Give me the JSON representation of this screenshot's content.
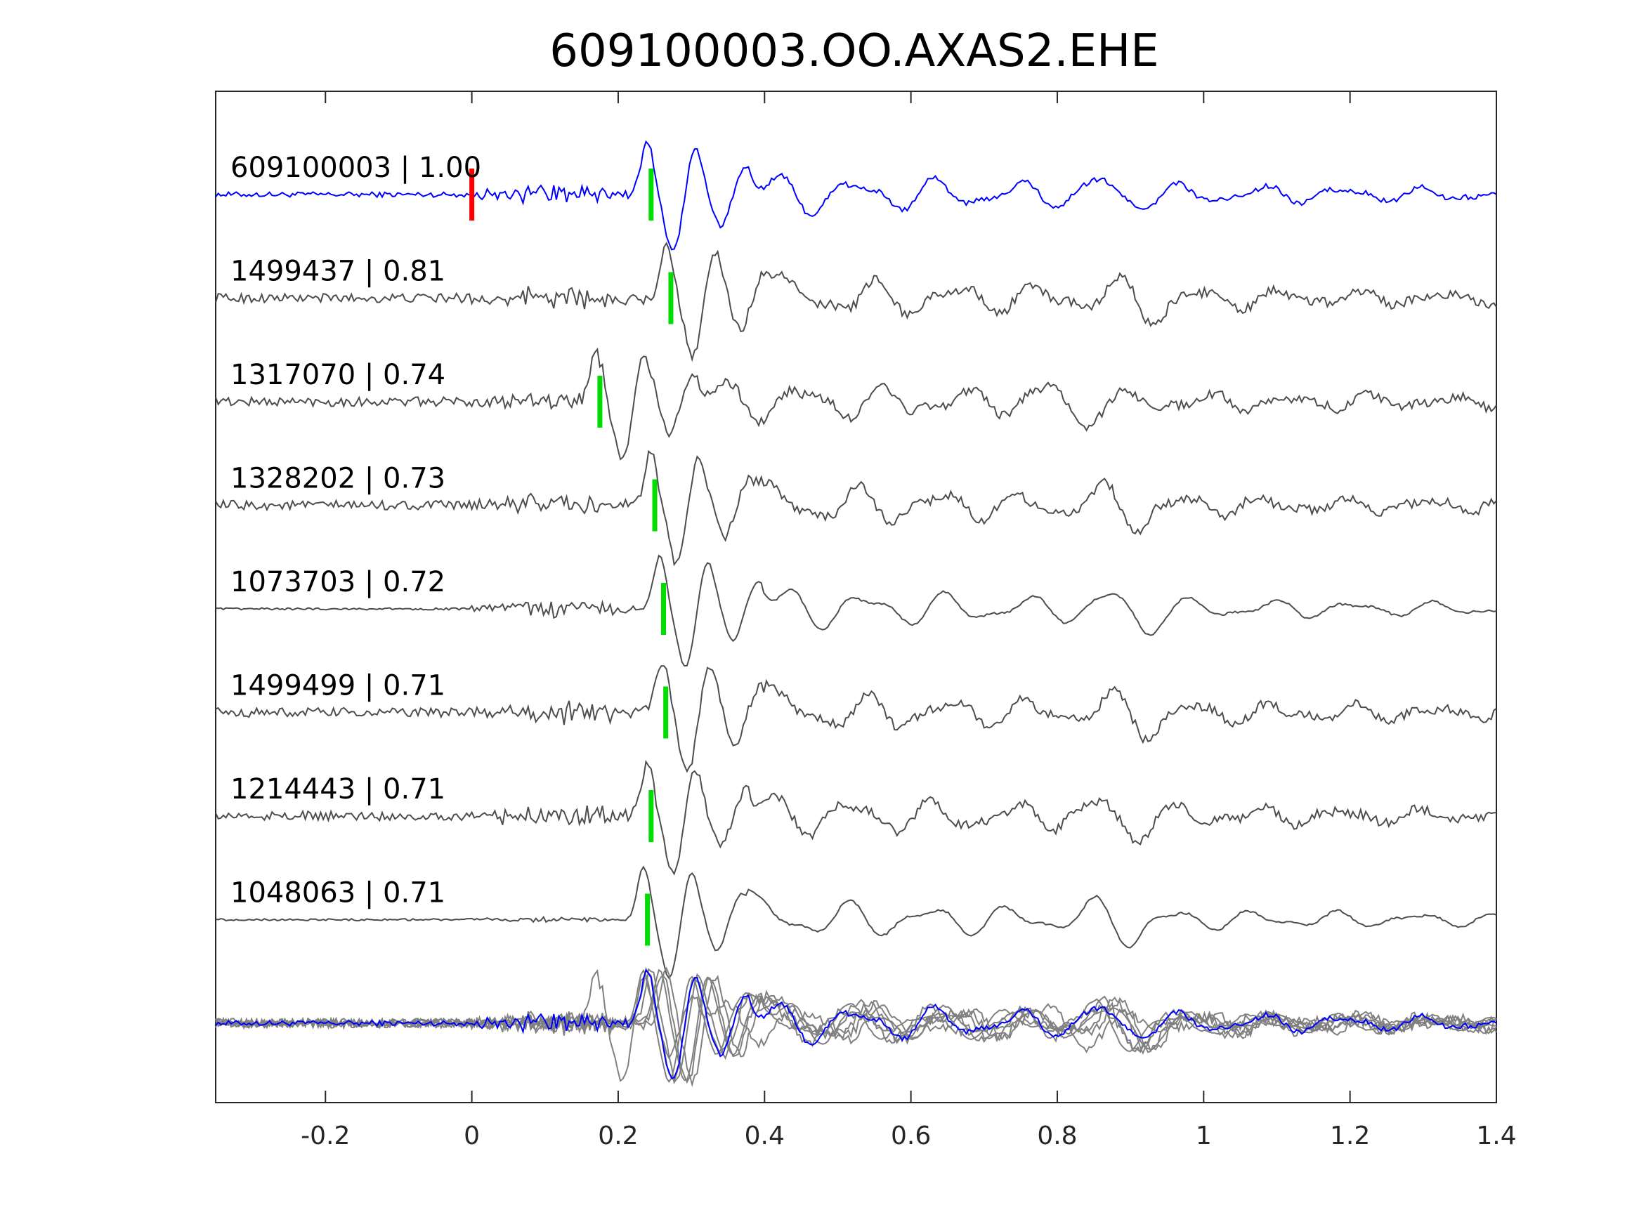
{
  "chart_data": {
    "type": "line",
    "title": "609100003.OO.AXAS2.EHE",
    "xlabel": "",
    "ylabel": "",
    "xlim": [
      -0.35,
      1.4
    ],
    "xticks": [
      -0.2,
      0,
      0.2,
      0.4,
      0.6,
      0.8,
      1,
      1.2,
      1.4
    ],
    "xtick_labels": [
      "-0.2",
      "0",
      "0.2",
      "0.4",
      "0.6",
      "0.8",
      "1",
      "1.2",
      "1.4"
    ],
    "grid": false,
    "colors": {
      "reference": "#0000ff",
      "match": "#4d4d4d",
      "stack": "#808080",
      "origin_pick": "#ff0000",
      "phase_pick": "#00dd00",
      "axis": "#262626"
    },
    "reference_origin_time": 0.0,
    "traces": [
      {
        "label": "609100003 | 1.00",
        "id": "609100003",
        "cc": 1.0,
        "pick": 0.245,
        "reference": true
      },
      {
        "label": "1499437 | 0.81",
        "id": "1499437",
        "cc": 0.81,
        "pick": 0.272
      },
      {
        "label": "1317070 | 0.74",
        "id": "1317070",
        "cc": 0.74,
        "pick": 0.175
      },
      {
        "label": "1328202 | 0.73",
        "id": "1328202",
        "cc": 0.73,
        "pick": 0.25
      },
      {
        "label": "1073703 | 0.72",
        "id": "1073703",
        "cc": 0.72,
        "pick": 0.262
      },
      {
        "label": "1499499 | 0.71",
        "id": "1499499",
        "cc": 0.71,
        "pick": 0.265
      },
      {
        "label": "1214443 | 0.71",
        "id": "1214443",
        "cc": 0.71,
        "pick": 0.245
      },
      {
        "label": "1048063 | 0.71",
        "id": "1048063",
        "cc": 0.71,
        "pick": 0.24
      }
    ]
  }
}
